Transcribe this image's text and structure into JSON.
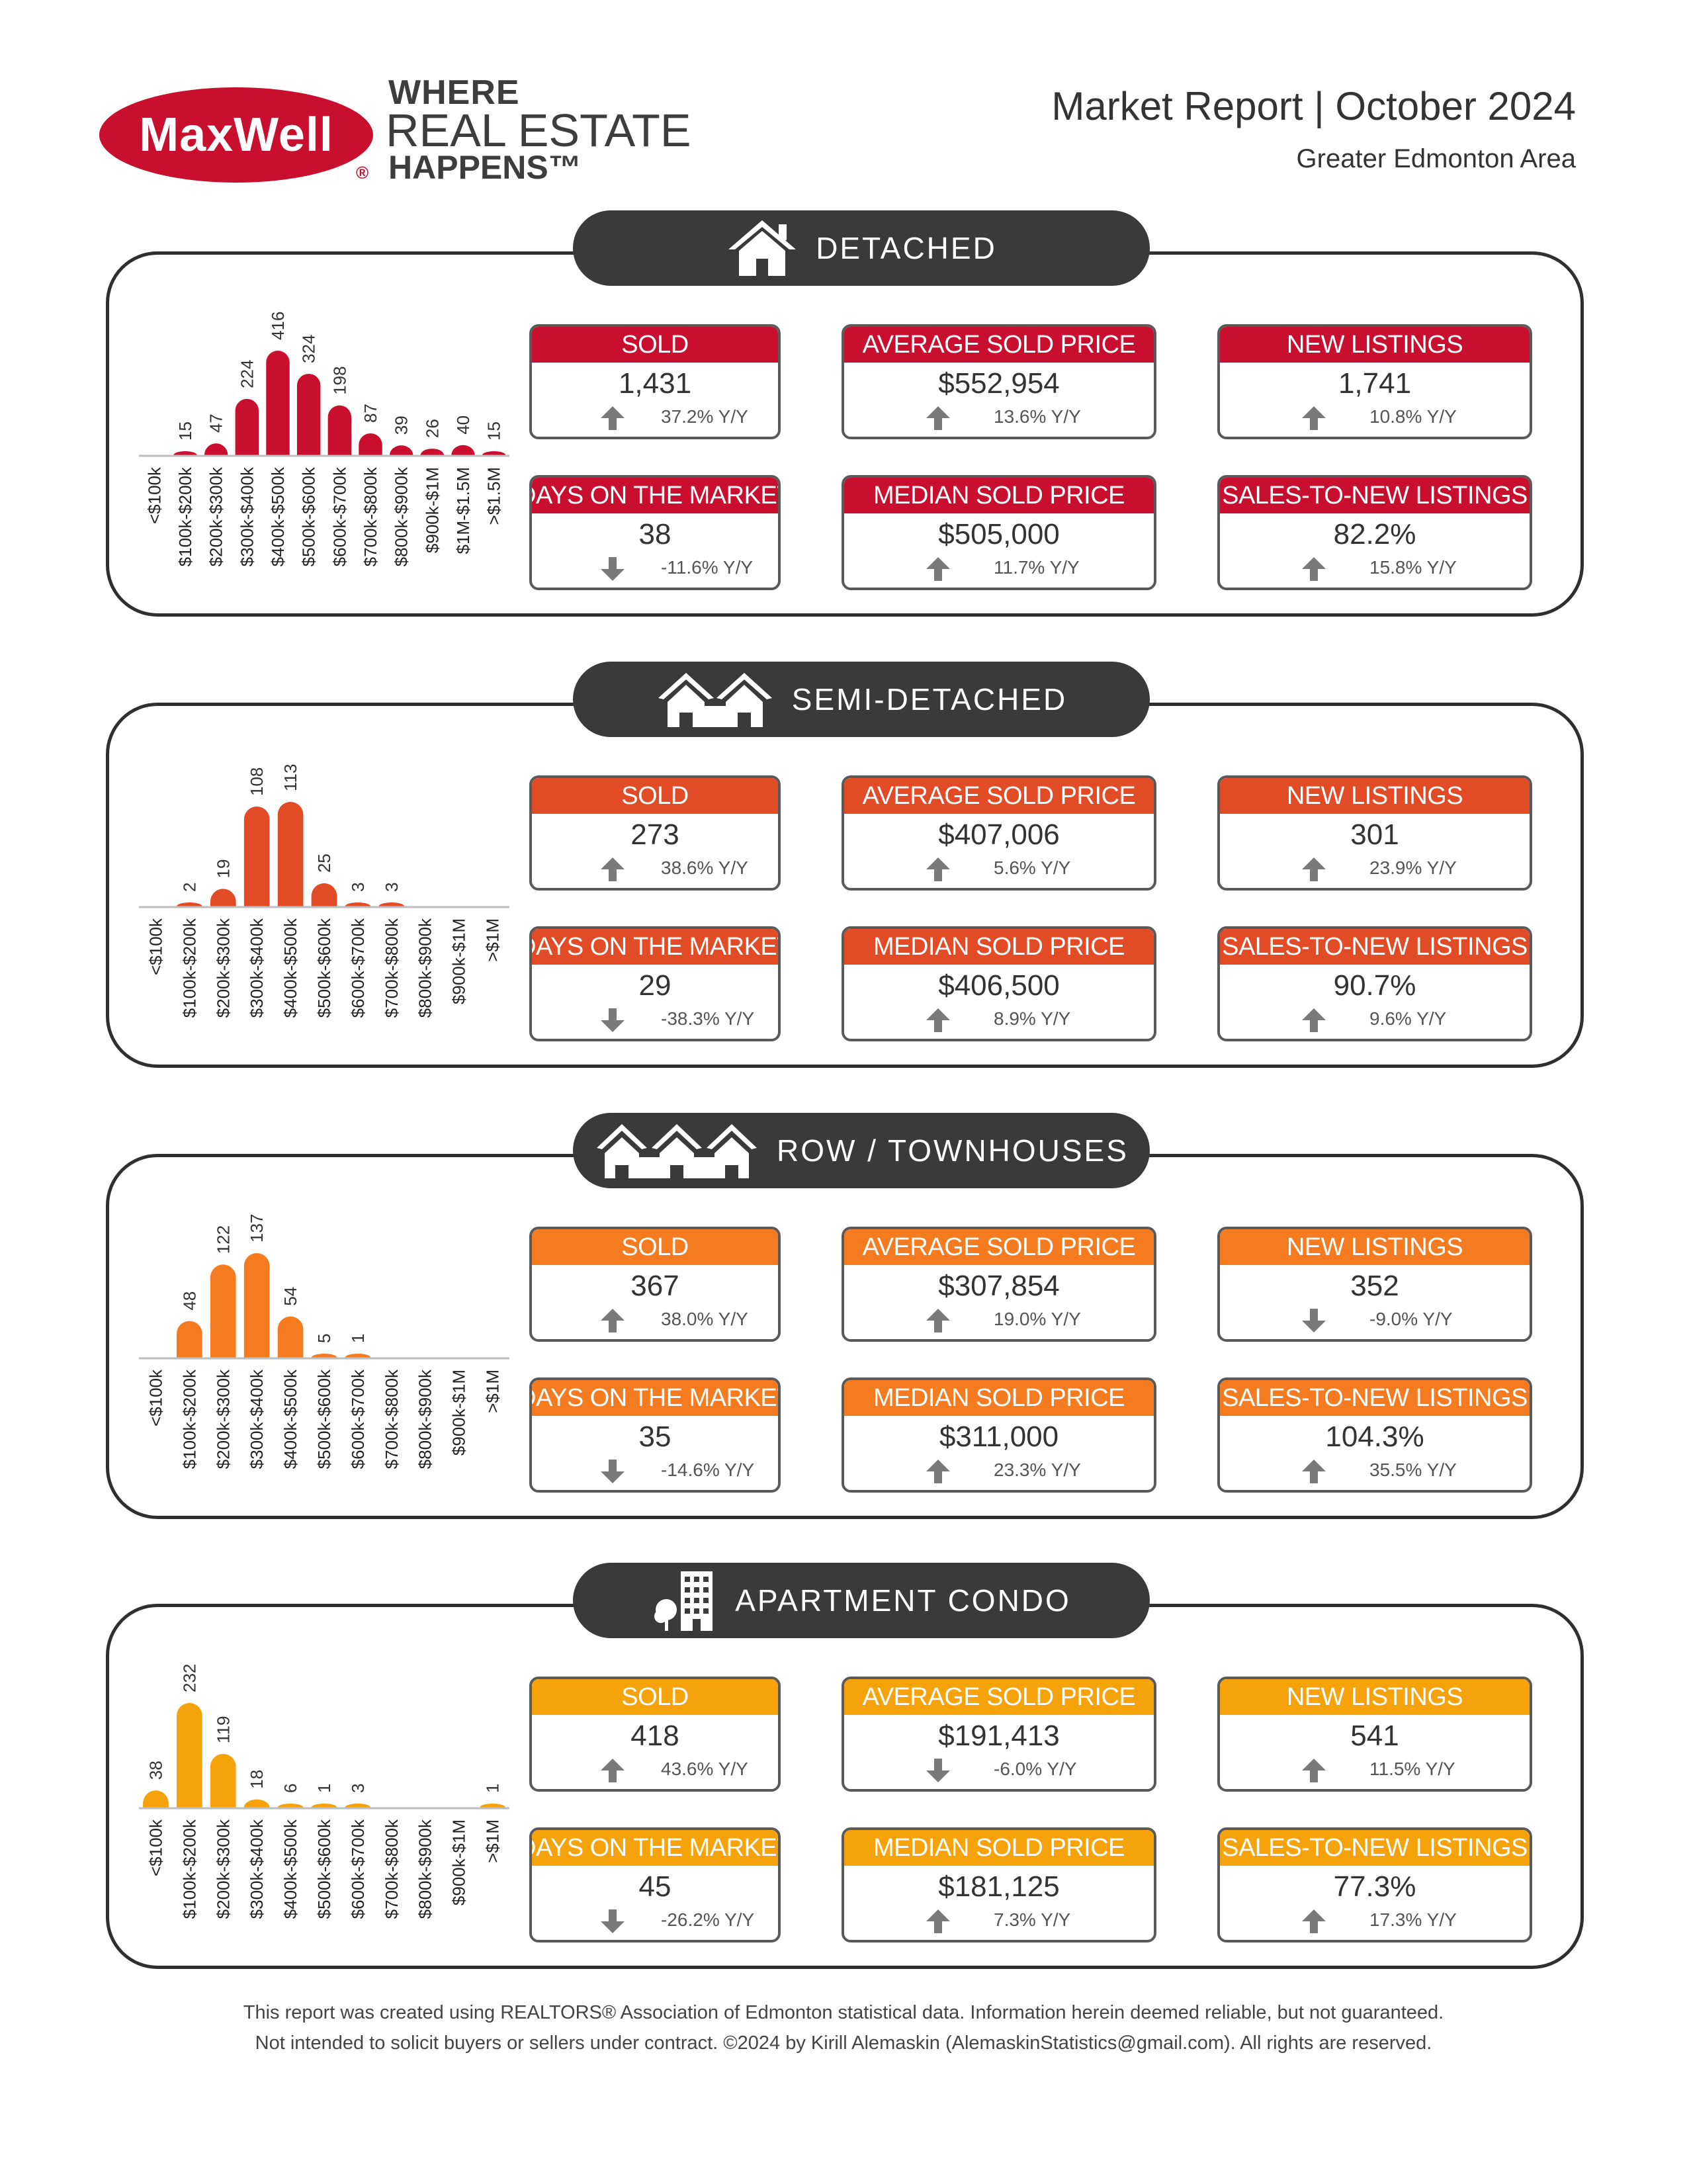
{
  "brand": {
    "logo_text": "MaxWell",
    "registered": "®",
    "tagline_1": "WHERE",
    "tagline_2": "REAL ESTATE",
    "tagline_3": "HAPPENS™",
    "color": "#c8102e"
  },
  "report": {
    "title": "Market Report | October 2024",
    "area": "Greater Edmonton Area"
  },
  "labels": {
    "sold": "SOLD",
    "avg_price": "AVERAGE SOLD PRICE",
    "new_listings": "NEW LISTINGS",
    "dom": "DAYS ON THE MARKET",
    "median_price": "MEDIAN SOLD PRICE",
    "s2n": "SALES-TO-NEW LISTINGS"
  },
  "sections": [
    {
      "title": "DETACHED",
      "icon": "house-icon",
      "color": "#c8102e",
      "stats": {
        "sold": {
          "value": "1,431",
          "change": "37.2% Y/Y",
          "direction": "up"
        },
        "avg_price": {
          "value": "$552,954",
          "change": "13.6% Y/Y",
          "direction": "up"
        },
        "new_listings": {
          "value": "1,741",
          "change": "10.8% Y/Y",
          "direction": "up"
        },
        "dom": {
          "value": "38",
          "change": "-11.6% Y/Y",
          "direction": "down"
        },
        "median_price": {
          "value": "$505,000",
          "change": "11.7% Y/Y",
          "direction": "up"
        },
        "s2n": {
          "value": "82.2%",
          "change": "15.8% Y/Y",
          "direction": "up"
        }
      }
    },
    {
      "title": "SEMI-DETACHED",
      "icon": "semi-detached-house-icon",
      "color": "#e14b25",
      "stats": {
        "sold": {
          "value": "273",
          "change": "38.6% Y/Y",
          "direction": "up"
        },
        "avg_price": {
          "value": "$407,006",
          "change": "5.6% Y/Y",
          "direction": "up"
        },
        "new_listings": {
          "value": "301",
          "change": "23.9% Y/Y",
          "direction": "up"
        },
        "dom": {
          "value": "29",
          "change": "-38.3% Y/Y",
          "direction": "down"
        },
        "median_price": {
          "value": "$406,500",
          "change": "8.9% Y/Y",
          "direction": "up"
        },
        "s2n": {
          "value": "90.7%",
          "change": "9.6% Y/Y",
          "direction": "up"
        }
      }
    },
    {
      "title": "ROW / TOWNHOUSES",
      "icon": "townhouse-icon",
      "color": "#f47b20",
      "stats": {
        "sold": {
          "value": "367",
          "change": "38.0% Y/Y",
          "direction": "up"
        },
        "avg_price": {
          "value": "$307,854",
          "change": "19.0% Y/Y",
          "direction": "up"
        },
        "new_listings": {
          "value": "352",
          "change": "-9.0% Y/Y",
          "direction": "down"
        },
        "dom": {
          "value": "35",
          "change": "-14.6% Y/Y",
          "direction": "down"
        },
        "median_price": {
          "value": "$311,000",
          "change": "23.3% Y/Y",
          "direction": "up"
        },
        "s2n": {
          "value": "104.3%",
          "change": "35.5% Y/Y",
          "direction": "up"
        }
      }
    },
    {
      "title": "APARTMENT CONDO",
      "icon": "apartment-building-icon",
      "color": "#f6a20b",
      "stats": {
        "sold": {
          "value": "418",
          "change": "43.6% Y/Y",
          "direction": "up"
        },
        "avg_price": {
          "value": "$191,413",
          "change": "-6.0% Y/Y",
          "direction": "down"
        },
        "new_listings": {
          "value": "541",
          "change": "11.5% Y/Y",
          "direction": "up"
        },
        "dom": {
          "value": "45",
          "change": "-26.2% Y/Y",
          "direction": "down"
        },
        "median_price": {
          "value": "$181,125",
          "change": "7.3% Y/Y",
          "direction": "up"
        },
        "s2n": {
          "value": "77.3%",
          "change": "17.3% Y/Y",
          "direction": "up"
        }
      }
    }
  ],
  "chart_data": [
    {
      "type": "bar",
      "categories": [
        "<$100k",
        "$100k-$200k",
        "$200k-$300k",
        "$300k-$400k",
        "$400k-$500k",
        "$500k-$600k",
        "$600k-$700k",
        "$700k-$800k",
        "$800k-$900k",
        "$900k-$1M",
        "$1M-$1.5M",
        ">$1.5M"
      ],
      "values": [
        0,
        15,
        47,
        224,
        416,
        324,
        198,
        87,
        39,
        26,
        40,
        15
      ],
      "labels": [
        "",
        "15",
        "47",
        "224",
        "416",
        "324",
        "198",
        "87",
        "39",
        "26",
        "40",
        "15"
      ],
      "color": "#c8102e",
      "ylim": [
        0,
        416
      ]
    },
    {
      "type": "bar",
      "categories": [
        "<$100k",
        "$100k-$200k",
        "$200k-$300k",
        "$300k-$400k",
        "$400k-$500k",
        "$500k-$600k",
        "$600k-$700k",
        "$700k-$800k",
        "$800k-$900k",
        "$900k-$1M",
        ">$1M"
      ],
      "values": [
        0,
        2,
        19,
        108,
        113,
        25,
        3,
        3,
        0,
        0,
        0
      ],
      "labels": [
        "",
        "2",
        "19",
        "108",
        "113",
        "25",
        "3",
        "3",
        "",
        "",
        ""
      ],
      "color": "#e14b25",
      "ylim": [
        0,
        113
      ]
    },
    {
      "type": "bar",
      "categories": [
        "<$100k",
        "$100k-$200k",
        "$200k-$300k",
        "$300k-$400k",
        "$400k-$500k",
        "$500k-$600k",
        "$600k-$700k",
        "$700k-$800k",
        "$800k-$900k",
        "$900k-$1M",
        ">$1M"
      ],
      "values": [
        0,
        48,
        122,
        137,
        54,
        5,
        1,
        0,
        0,
        0,
        0
      ],
      "labels": [
        "",
        "48",
        "122",
        "137",
        "54",
        "5",
        "1",
        "",
        "",
        "",
        ""
      ],
      "color": "#f47b20",
      "ylim": [
        0,
        137
      ]
    },
    {
      "type": "bar",
      "categories": [
        "<$100k",
        "$100k-$200k",
        "$200k-$300k",
        "$300k-$400k",
        "$400k-$500k",
        "$500k-$600k",
        "$600k-$700k",
        "$700k-$800k",
        "$800k-$900k",
        "$900k-$1M",
        ">$1M"
      ],
      "values": [
        38,
        232,
        119,
        18,
        6,
        1,
        3,
        0,
        0,
        0,
        1
      ],
      "labels": [
        "38",
        "232",
        "119",
        "18",
        "6",
        "1",
        "3",
        "",
        "",
        "",
        "1"
      ],
      "color": "#f6a20b",
      "ylim": [
        0,
        232
      ]
    }
  ],
  "footer": {
    "line1": "This report was created using REALTORS® Association of Edmonton statistical data. Information herein deemed reliable, but not guaranteed.",
    "line2": "Not intended to solicit buyers or sellers under contract. ©2024 by Kirill Alemaskin (AlemaskinStatistics@gmail.com). All rights are reserved."
  }
}
